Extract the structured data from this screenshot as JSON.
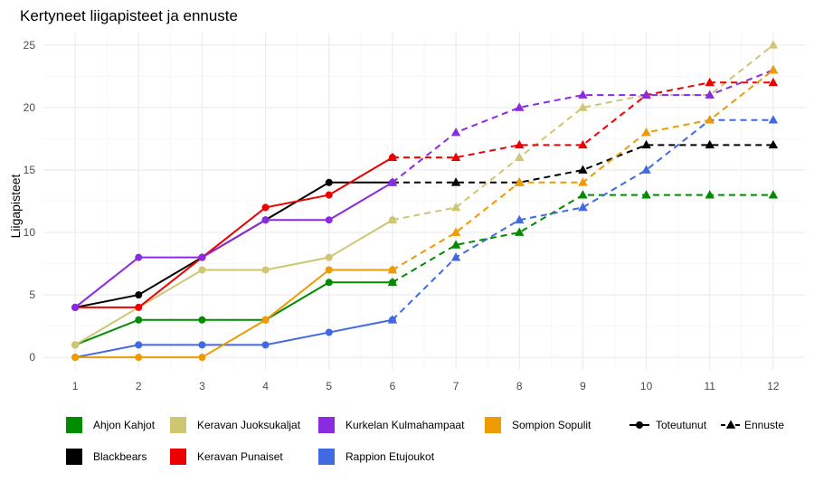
{
  "chart_data": {
    "type": "line",
    "title": "Kertyneet liigapisteet ja ennuste",
    "xlabel": "",
    "ylabel": "Liigapisteet",
    "x": [
      1,
      2,
      3,
      4,
      5,
      6,
      7,
      8,
      9,
      10,
      11,
      12
    ],
    "xlim": [
      0.5,
      12.5
    ],
    "ylim": [
      -1,
      26
    ],
    "yticks": [
      0,
      5,
      10,
      15,
      20,
      25
    ],
    "grid": true,
    "legend_position": "bottom",
    "series": [
      {
        "name": "Ahjon Kahjot",
        "color": "#008B00",
        "actual": [
          [
            1,
            1
          ],
          [
            2,
            3
          ],
          [
            3,
            3
          ],
          [
            4,
            3
          ],
          [
            5,
            6
          ],
          [
            6,
            6
          ]
        ],
        "forecast": [
          [
            6,
            6
          ],
          [
            7,
            9
          ],
          [
            8,
            10
          ],
          [
            9,
            13
          ],
          [
            10,
            13
          ],
          [
            11,
            13
          ],
          [
            12,
            13
          ]
        ]
      },
      {
        "name": "Blackbears",
        "color": "#000000",
        "actual": [
          [
            1,
            4
          ],
          [
            2,
            5
          ],
          [
            3,
            8
          ],
          [
            4,
            11
          ],
          [
            5,
            14
          ],
          [
            6,
            14
          ]
        ],
        "forecast": [
          [
            6,
            14
          ],
          [
            7,
            14
          ],
          [
            8,
            14
          ],
          [
            9,
            15
          ],
          [
            10,
            17
          ],
          [
            11,
            17
          ],
          [
            12,
            17
          ]
        ]
      },
      {
        "name": "Keravan Juoksukaljat",
        "color": "#CDC673",
        "actual": [
          [
            1,
            1
          ],
          [
            2,
            4
          ],
          [
            3,
            7
          ],
          [
            4,
            7
          ],
          [
            5,
            8
          ],
          [
            6,
            11
          ]
        ],
        "forecast": [
          [
            6,
            11
          ],
          [
            7,
            12
          ],
          [
            8,
            16
          ],
          [
            9,
            20
          ],
          [
            10,
            21
          ],
          [
            11,
            21
          ],
          [
            12,
            25
          ]
        ]
      },
      {
        "name": "Keravan Punaiset",
        "color": "#EE0000",
        "actual": [
          [
            1,
            4
          ],
          [
            2,
            4
          ],
          [
            3,
            8
          ],
          [
            4,
            12
          ],
          [
            5,
            13
          ],
          [
            6,
            16
          ]
        ],
        "forecast": [
          [
            6,
            16
          ],
          [
            7,
            16
          ],
          [
            8,
            17
          ],
          [
            9,
            17
          ],
          [
            10,
            21
          ],
          [
            11,
            22
          ],
          [
            12,
            22
          ]
        ]
      },
      {
        "name": "Kurkelan Kulmahampaat",
        "color": "#8A2BE2",
        "actual": [
          [
            1,
            4
          ],
          [
            2,
            8
          ],
          [
            3,
            8
          ],
          [
            4,
            11
          ],
          [
            5,
            11
          ],
          [
            6,
            14
          ]
        ],
        "forecast": [
          [
            6,
            14
          ],
          [
            7,
            18
          ],
          [
            8,
            20
          ],
          [
            9,
            21
          ],
          [
            10,
            21
          ],
          [
            11,
            21
          ],
          [
            12,
            23
          ]
        ]
      },
      {
        "name": "Rappion Etujoukot",
        "color": "#4169E1",
        "actual": [
          [
            1,
            0
          ],
          [
            2,
            1
          ],
          [
            3,
            1
          ],
          [
            4,
            1
          ],
          [
            5,
            2
          ],
          [
            6,
            3
          ]
        ],
        "forecast": [
          [
            6,
            3
          ],
          [
            7,
            8
          ],
          [
            8,
            11
          ],
          [
            9,
            12
          ],
          [
            10,
            15
          ],
          [
            11,
            19
          ],
          [
            12,
            19
          ]
        ]
      },
      {
        "name": "Sompion Sopulit",
        "color": "#EE9A00",
        "actual": [
          [
            1,
            0
          ],
          [
            2,
            0
          ],
          [
            3,
            0
          ],
          [
            4,
            3
          ],
          [
            5,
            7
          ],
          [
            6,
            7
          ]
        ],
        "forecast": [
          [
            6,
            7
          ],
          [
            7,
            10
          ],
          [
            8,
            14
          ],
          [
            9,
            14
          ],
          [
            10,
            18
          ],
          [
            11,
            19
          ],
          [
            12,
            23
          ]
        ]
      }
    ],
    "legend_order": [
      "Ahjon Kahjot",
      "Keravan Juoksukaljat",
      "Kurkelan Kulmahampaat",
      "Sompion Sopulit",
      "Blackbears",
      "Keravan Punaiset",
      "Rappion Etujoukot"
    ],
    "linetype_legend": [
      "Toteutunut",
      "Ennuste"
    ]
  }
}
